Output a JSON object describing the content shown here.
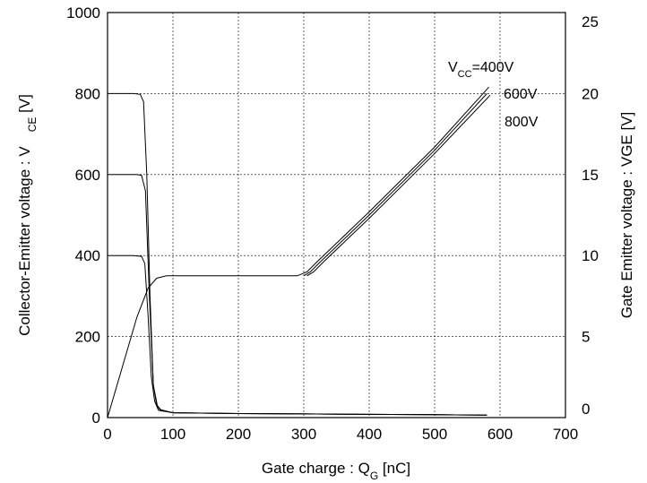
{
  "chart_data": {
    "type": "line",
    "title": "",
    "xlabel": "Gate charge : Q",
    "xlabel_sub": "G",
    "xlabel_unit": " [nC]",
    "ylabel_left": "Collector-Emitter voltage : V",
    "ylabel_left_sub": "CE",
    "ylabel_left_unit": " [V]",
    "ylabel_right": "Gate Emitter voltage : VGE [V]",
    "xlim": [
      0,
      700
    ],
    "ylim_left": [
      0,
      1000
    ],
    "ylim_right": [
      0,
      25
    ],
    "grid": true,
    "x_ticks": [
      "0",
      "100",
      "200",
      "300",
      "400",
      "500",
      "600",
      "700"
    ],
    "y_left_ticks": [
      "0",
      "200",
      "400",
      "600",
      "800",
      "1000"
    ],
    "y_right_ticks": [
      "0",
      "5",
      "10",
      "15",
      "20",
      "25"
    ],
    "annotations": {
      "vcc_prefix": "V",
      "vcc_sub": "CC",
      "vcc_400": "=400V",
      "vcc_600": "600V",
      "vcc_800": "800V"
    },
    "series": [
      {
        "axis": "left",
        "x": [
          0,
          40,
          50,
          55,
          60,
          65,
          70,
          75,
          80,
          100,
          200,
          300,
          400,
          500,
          580
        ],
        "y": [
          800,
          800,
          798,
          780,
          600,
          300,
          80,
          30,
          20,
          12,
          10,
          9,
          8,
          7,
          6
        ]
      },
      {
        "axis": "left",
        "x": [
          0,
          45,
          52,
          58,
          64,
          70,
          76,
          82,
          100,
          200,
          300,
          400,
          500,
          580
        ],
        "y": [
          600,
          600,
          598,
          560,
          300,
          80,
          30,
          18,
          12,
          10,
          9,
          8,
          7,
          6
        ]
      },
      {
        "axis": "left",
        "x": [
          0,
          40,
          52,
          57,
          62,
          67,
          72,
          78,
          100,
          200,
          300,
          400,
          500,
          580
        ],
        "y": [
          400,
          400,
          398,
          380,
          250,
          100,
          40,
          18,
          12,
          10,
          9,
          8,
          7,
          6
        ]
      },
      {
        "axis": "right",
        "x": [
          0,
          45,
          62,
          75,
          90,
          200,
          290,
          305,
          320,
          400,
          500,
          583
        ],
        "y": [
          0,
          6.2,
          8.0,
          8.6,
          8.75,
          8.75,
          8.75,
          9.0,
          9.6,
          12.7,
          16.7,
          20.4
        ]
      },
      {
        "axis": "right",
        "x": [
          300,
          310,
          325,
          400,
          500,
          580
        ],
        "y": [
          8.75,
          9.0,
          9.6,
          12.5,
          16.5,
          20.0
        ]
      },
      {
        "axis": "right",
        "x": [
          305,
          315,
          330,
          400,
          500,
          585
        ],
        "y": [
          8.75,
          9.0,
          9.6,
          12.3,
          16.3,
          19.9
        ]
      }
    ]
  }
}
